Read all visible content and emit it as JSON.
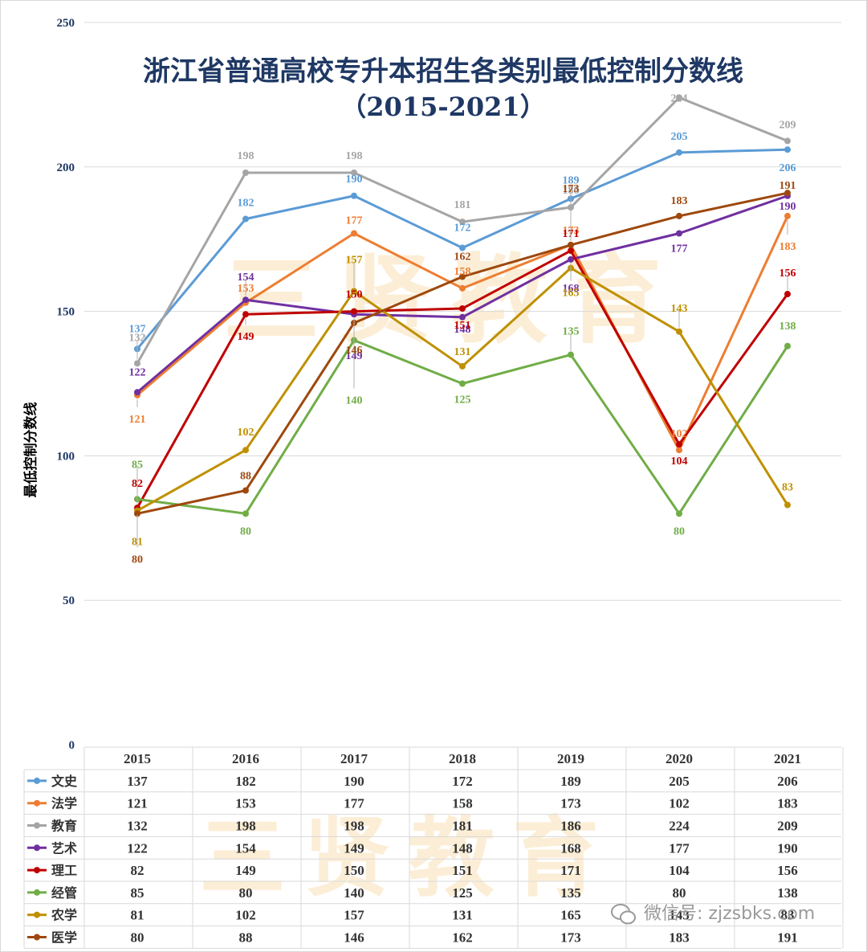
{
  "chart_data": {
    "type": "line",
    "title": "浙江省普通高校专升本招生各类别最低控制分数线",
    "subtitle": "（2015-2021）",
    "ylabel": "最低控制分数线",
    "xlabel": "",
    "ylim": [
      0,
      250
    ],
    "yticks": [
      0,
      50,
      100,
      150,
      200,
      250
    ],
    "grid": true,
    "categories": [
      "2015",
      "2016",
      "2017",
      "2018",
      "2019",
      "2020",
      "2021"
    ],
    "series": [
      {
        "name": "文史",
        "color": "#5b9bd5",
        "values": [
          137,
          182,
          190,
          172,
          189,
          205,
          206
        ]
      },
      {
        "name": "法学",
        "color": "#ed7d31",
        "values": [
          121,
          153,
          177,
          158,
          173,
          102,
          183
        ]
      },
      {
        "name": "教育",
        "color": "#a5a5a5",
        "values": [
          132,
          198,
          198,
          181,
          186,
          224,
          209
        ]
      },
      {
        "name": "艺术",
        "color": "#7030a0",
        "values": [
          122,
          154,
          149,
          148,
          168,
          177,
          190
        ]
      },
      {
        "name": "理工",
        "color": "#c00000",
        "values": [
          82,
          149,
          150,
          151,
          171,
          104,
          156
        ]
      },
      {
        "name": "经管",
        "color": "#70ad47",
        "values": [
          85,
          80,
          140,
          125,
          135,
          80,
          138
        ]
      },
      {
        "name": "农学",
        "color": "#bf9000",
        "values": [
          81,
          102,
          157,
          131,
          165,
          143,
          83
        ]
      },
      {
        "name": "医学",
        "color": "#9e480e",
        "values": [
          80,
          88,
          146,
          162,
          173,
          183,
          191
        ]
      }
    ]
  },
  "watermark": "三贤教育",
  "footer": {
    "wechat_text": "微信号: zjzsbks.com"
  }
}
